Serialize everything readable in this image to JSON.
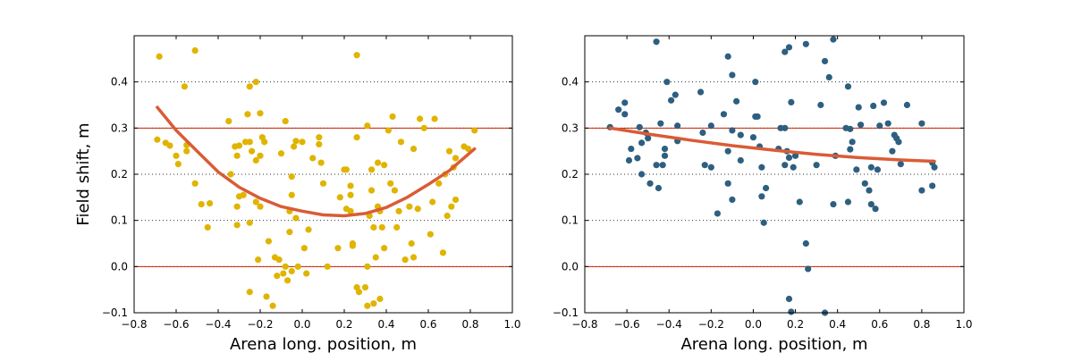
{
  "chart_data": [
    {
      "type": "scatter",
      "title": "",
      "xlabel": "Arena long. position, m",
      "ylabel": "Field shift, m",
      "xlim": [
        -0.8,
        1.0
      ],
      "ylim": [
        -0.1,
        0.5
      ],
      "xticks": [
        "−0.8",
        "−0.6",
        "−0.4",
        "−0.2",
        "0.0",
        "0.2",
        "0.4",
        "0.6",
        "0.8",
        "1.0"
      ],
      "yticks": [
        "−0.1",
        "0.0",
        "0.1",
        "0.2",
        "0.3",
        "0.4"
      ],
      "grid": "y-dotted",
      "reference_lines": [
        0.0,
        0.3
      ],
      "colors": {
        "points": "#e0b400",
        "fit": "#d95c36",
        "reference": "#cc2200"
      },
      "series": [
        {
          "type": "scatter",
          "points": [
            [
              -0.68,
              0.455
            ],
            [
              -0.51,
              0.468
            ],
            [
              -0.56,
              0.39
            ],
            [
              -0.22,
              0.4
            ],
            [
              -0.25,
              0.39
            ],
            [
              0.26,
              0.458
            ],
            [
              -0.69,
              0.275
            ],
            [
              -0.65,
              0.268
            ],
            [
              -0.63,
              0.262
            ],
            [
              -0.6,
              0.24
            ],
            [
              -0.59,
              0.222
            ],
            [
              -0.55,
              0.25
            ],
            [
              -0.55,
              0.263
            ],
            [
              -0.51,
              0.18
            ],
            [
              -0.48,
              0.135
            ],
            [
              -0.45,
              0.085
            ],
            [
              -0.44,
              0.137
            ],
            [
              -0.35,
              0.315
            ],
            [
              -0.34,
              0.2
            ],
            [
              -0.32,
              0.26
            ],
            [
              -0.31,
              0.24
            ],
            [
              -0.3,
              0.262
            ],
            [
              -0.31,
              0.13
            ],
            [
              -0.31,
              0.09
            ],
            [
              -0.3,
              0.152
            ],
            [
              -0.28,
              0.155
            ],
            [
              -0.27,
              0.27
            ],
            [
              -0.25,
              0.27
            ],
            [
              -0.26,
              0.33
            ],
            [
              -0.24,
              0.25
            ],
            [
              -0.22,
              0.23
            ],
            [
              -0.2,
              0.24
            ],
            [
              -0.2,
              0.332
            ],
            [
              -0.19,
              0.28
            ],
            [
              -0.18,
              0.27
            ],
            [
              -0.22,
              0.14
            ],
            [
              -0.2,
              0.13
            ],
            [
              -0.25,
              0.095
            ],
            [
              -0.21,
              0.015
            ],
            [
              -0.16,
              0.055
            ],
            [
              -0.13,
              0.02
            ],
            [
              -0.12,
              -0.02
            ],
            [
              -0.09,
              -0.015
            ],
            [
              -0.25,
              -0.055
            ],
            [
              -0.17,
              -0.065
            ],
            [
              -0.14,
              -0.085
            ],
            [
              -0.11,
              0.015
            ],
            [
              -0.08,
              0.0
            ],
            [
              -0.1,
              0.245
            ],
            [
              -0.08,
              0.315
            ],
            [
              -0.06,
              0.12
            ],
            [
              -0.06,
              0.075
            ],
            [
              -0.05,
              0.155
            ],
            [
              -0.04,
              0.26
            ],
            [
              -0.03,
              0.272
            ],
            [
              -0.05,
              0.195
            ],
            [
              -0.03,
              0.105
            ],
            [
              -0.07,
              -0.03
            ],
            [
              -0.05,
              -0.01
            ],
            [
              -0.02,
              0.0
            ],
            [
              0.0,
              0.27
            ],
            [
              0.01,
              0.04
            ],
            [
              0.02,
              -0.015
            ],
            [
              0.03,
              0.08
            ],
            [
              0.05,
              0.235
            ],
            [
              0.08,
              0.265
            ],
            [
              0.08,
              0.28
            ],
            [
              0.09,
              0.225
            ],
            [
              0.1,
              0.18
            ],
            [
              0.12,
              0.0
            ],
            [
              0.17,
              0.04
            ],
            [
              0.18,
              0.15
            ],
            [
              0.2,
              0.21
            ],
            [
              0.21,
              0.21
            ],
            [
              0.21,
              0.125
            ],
            [
              0.23,
              0.175
            ],
            [
              0.23,
              0.155
            ],
            [
              0.23,
              0.12
            ],
            [
              0.26,
              -0.045
            ],
            [
              0.24,
              0.05
            ],
            [
              0.24,
              0.045
            ],
            [
              0.26,
              0.28
            ],
            [
              0.27,
              -0.055
            ],
            [
              0.3,
              -0.045
            ],
            [
              0.31,
              0.305
            ],
            [
              0.31,
              0.0
            ],
            [
              0.33,
              0.21
            ],
            [
              0.33,
              0.165
            ],
            [
              0.32,
              0.11
            ],
            [
              0.34,
              0.085
            ],
            [
              0.35,
              0.02
            ],
            [
              0.36,
              0.13
            ],
            [
              0.37,
              0.12
            ],
            [
              0.38,
              0.085
            ],
            [
              0.39,
              0.22
            ],
            [
              0.39,
              0.04
            ],
            [
              0.41,
              0.295
            ],
            [
              0.42,
              0.18
            ],
            [
              0.43,
              0.325
            ],
            [
              0.44,
              0.165
            ],
            [
              0.45,
              0.085
            ],
            [
              0.46,
              0.12
            ],
            [
              0.47,
              0.27
            ],
            [
              0.49,
              0.015
            ],
            [
              0.52,
              0.05
            ],
            [
              0.51,
              0.13
            ],
            [
              0.53,
              0.255
            ],
            [
              0.55,
              0.125
            ],
            [
              0.56,
              0.32
            ],
            [
              0.58,
              0.3
            ],
            [
              0.61,
              0.07
            ],
            [
              0.62,
              0.14
            ],
            [
              0.63,
              0.32
            ],
            [
              0.65,
              0.18
            ],
            [
              0.67,
              0.03
            ],
            [
              0.68,
              0.2
            ],
            [
              0.69,
              0.11
            ],
            [
              0.7,
              0.25
            ],
            [
              0.71,
              0.13
            ],
            [
              0.72,
              0.215
            ],
            [
              0.73,
              0.145
            ],
            [
              0.73,
              0.235
            ],
            [
              0.77,
              0.26
            ],
            [
              0.79,
              0.255
            ],
            [
              0.82,
              0.295
            ],
            [
              0.31,
              -0.085
            ],
            [
              0.34,
              -0.08
            ],
            [
              0.37,
              -0.07
            ],
            [
              0.53,
              0.02
            ],
            [
              0.36,
              0.225
            ]
          ]
        },
        {
          "type": "line",
          "points": [
            [
              -0.69,
              0.345
            ],
            [
              -0.6,
              0.295
            ],
            [
              -0.5,
              0.25
            ],
            [
              -0.4,
              0.205
            ],
            [
              -0.3,
              0.172
            ],
            [
              -0.2,
              0.148
            ],
            [
              -0.1,
              0.13
            ],
            [
              0.0,
              0.12
            ],
            [
              0.1,
              0.112
            ],
            [
              0.2,
              0.11
            ],
            [
              0.3,
              0.115
            ],
            [
              0.4,
              0.128
            ],
            [
              0.5,
              0.15
            ],
            [
              0.6,
              0.178
            ],
            [
              0.7,
              0.208
            ],
            [
              0.82,
              0.255
            ]
          ]
        }
      ]
    },
    {
      "type": "scatter",
      "title": "",
      "xlabel": "Arena long. position, m",
      "ylabel": "",
      "xlim": [
        -0.8,
        1.0
      ],
      "ylim": [
        -0.1,
        0.5
      ],
      "xticks": [
        "−0.8",
        "−0.6",
        "−0.4",
        "−0.2",
        "0.0",
        "0.2",
        "0.4",
        "0.6",
        "0.8",
        "1.0"
      ],
      "yticks": [
        "−0.1",
        "0.0",
        "0.1",
        "0.2",
        "0.3",
        "0.4"
      ],
      "grid": "y-dotted",
      "reference_lines": [
        0.0,
        0.3
      ],
      "colors": {
        "points": "#2e5f80",
        "fit": "#d95c36",
        "reference": "#cc2200"
      },
      "series": [
        {
          "type": "scatter",
          "points": [
            [
              -0.46,
              0.487
            ],
            [
              0.38,
              0.492
            ],
            [
              0.25,
              0.482
            ],
            [
              0.17,
              0.475
            ],
            [
              0.15,
              0.465
            ],
            [
              -0.12,
              0.455
            ],
            [
              0.34,
              0.445
            ],
            [
              -0.1,
              0.415
            ],
            [
              0.36,
              0.41
            ],
            [
              0.01,
              0.4
            ],
            [
              -0.41,
              0.4
            ],
            [
              0.45,
              0.39
            ],
            [
              -0.25,
              0.378
            ],
            [
              -0.37,
              0.372
            ],
            [
              -0.39,
              0.36
            ],
            [
              -0.08,
              0.358
            ],
            [
              0.18,
              0.356
            ],
            [
              0.62,
              0.355
            ],
            [
              -0.61,
              0.355
            ],
            [
              0.73,
              0.35
            ],
            [
              -0.64,
              0.34
            ],
            [
              0.32,
              0.35
            ],
            [
              0.5,
              0.345
            ],
            [
              0.57,
              0.348
            ],
            [
              -0.61,
              0.33
            ],
            [
              -0.14,
              0.33
            ],
            [
              0.01,
              0.325
            ],
            [
              0.02,
              0.325
            ],
            [
              0.8,
              0.31
            ],
            [
              0.64,
              0.31
            ],
            [
              0.6,
              0.305
            ],
            [
              0.51,
              0.307
            ],
            [
              -0.44,
              0.31
            ],
            [
              -0.36,
              0.305
            ],
            [
              -0.2,
              0.305
            ],
            [
              -0.68,
              0.302
            ],
            [
              -0.54,
              0.302
            ],
            [
              0.13,
              0.3
            ],
            [
              0.15,
              0.3
            ],
            [
              0.44,
              0.3
            ],
            [
              0.46,
              0.298
            ],
            [
              -0.1,
              0.295
            ],
            [
              -0.24,
              0.29
            ],
            [
              0.0,
              0.28
            ],
            [
              -0.51,
              0.29
            ],
            [
              -0.5,
              0.278
            ],
            [
              -0.36,
              0.272
            ],
            [
              -0.06,
              0.285
            ],
            [
              0.67,
              0.285
            ],
            [
              0.68,
              0.278
            ],
            [
              0.69,
              0.27
            ],
            [
              0.47,
              0.27
            ],
            [
              0.39,
              0.24
            ],
            [
              0.46,
              0.254
            ],
            [
              -0.58,
              0.255
            ],
            [
              -0.53,
              0.268
            ],
            [
              -0.42,
              0.255
            ],
            [
              -0.42,
              0.24
            ],
            [
              0.03,
              0.26
            ],
            [
              0.12,
              0.255
            ],
            [
              -0.12,
              0.25
            ],
            [
              0.16,
              0.25
            ],
            [
              0.2,
              0.24
            ],
            [
              0.17,
              0.236
            ],
            [
              0.66,
              0.25
            ],
            [
              -0.59,
              0.23
            ],
            [
              -0.55,
              0.235
            ],
            [
              -0.46,
              0.22
            ],
            [
              -0.43,
              0.22
            ],
            [
              -0.53,
              0.2
            ],
            [
              -0.23,
              0.22
            ],
            [
              -0.2,
              0.215
            ],
            [
              -0.06,
              0.23
            ],
            [
              0.04,
              0.215
            ],
            [
              0.15,
              0.22
            ],
            [
              0.19,
              0.215
            ],
            [
              0.3,
              0.22
            ],
            [
              0.49,
              0.21
            ],
            [
              0.56,
              0.215
            ],
            [
              0.59,
              0.21
            ],
            [
              0.7,
              0.222
            ],
            [
              0.85,
              0.225
            ],
            [
              0.86,
              0.215
            ],
            [
              0.53,
              0.18
            ],
            [
              0.55,
              0.165
            ],
            [
              -0.49,
              0.18
            ],
            [
              -0.45,
              0.17
            ],
            [
              -0.12,
              0.18
            ],
            [
              -0.1,
              0.145
            ],
            [
              0.06,
              0.17
            ],
            [
              0.04,
              0.152
            ],
            [
              0.38,
              0.135
            ],
            [
              0.45,
              0.14
            ],
            [
              0.56,
              0.135
            ],
            [
              0.58,
              0.125
            ],
            [
              0.22,
              0.14
            ],
            [
              0.8,
              0.165
            ],
            [
              0.85,
              0.175
            ],
            [
              -0.17,
              0.115
            ],
            [
              0.05,
              0.095
            ],
            [
              0.25,
              0.05
            ],
            [
              0.26,
              -0.005
            ],
            [
              0.17,
              -0.07
            ],
            [
              0.18,
              -0.098
            ],
            [
              0.34,
              -0.1
            ]
          ]
        },
        {
          "type": "line",
          "points": [
            [
              -0.68,
              0.3
            ],
            [
              -0.5,
              0.287
            ],
            [
              -0.3,
              0.274
            ],
            [
              -0.1,
              0.262
            ],
            [
              0.1,
              0.252
            ],
            [
              0.3,
              0.243
            ],
            [
              0.5,
              0.236
            ],
            [
              0.7,
              0.231
            ],
            [
              0.86,
              0.228
            ]
          ]
        }
      ]
    }
  ]
}
